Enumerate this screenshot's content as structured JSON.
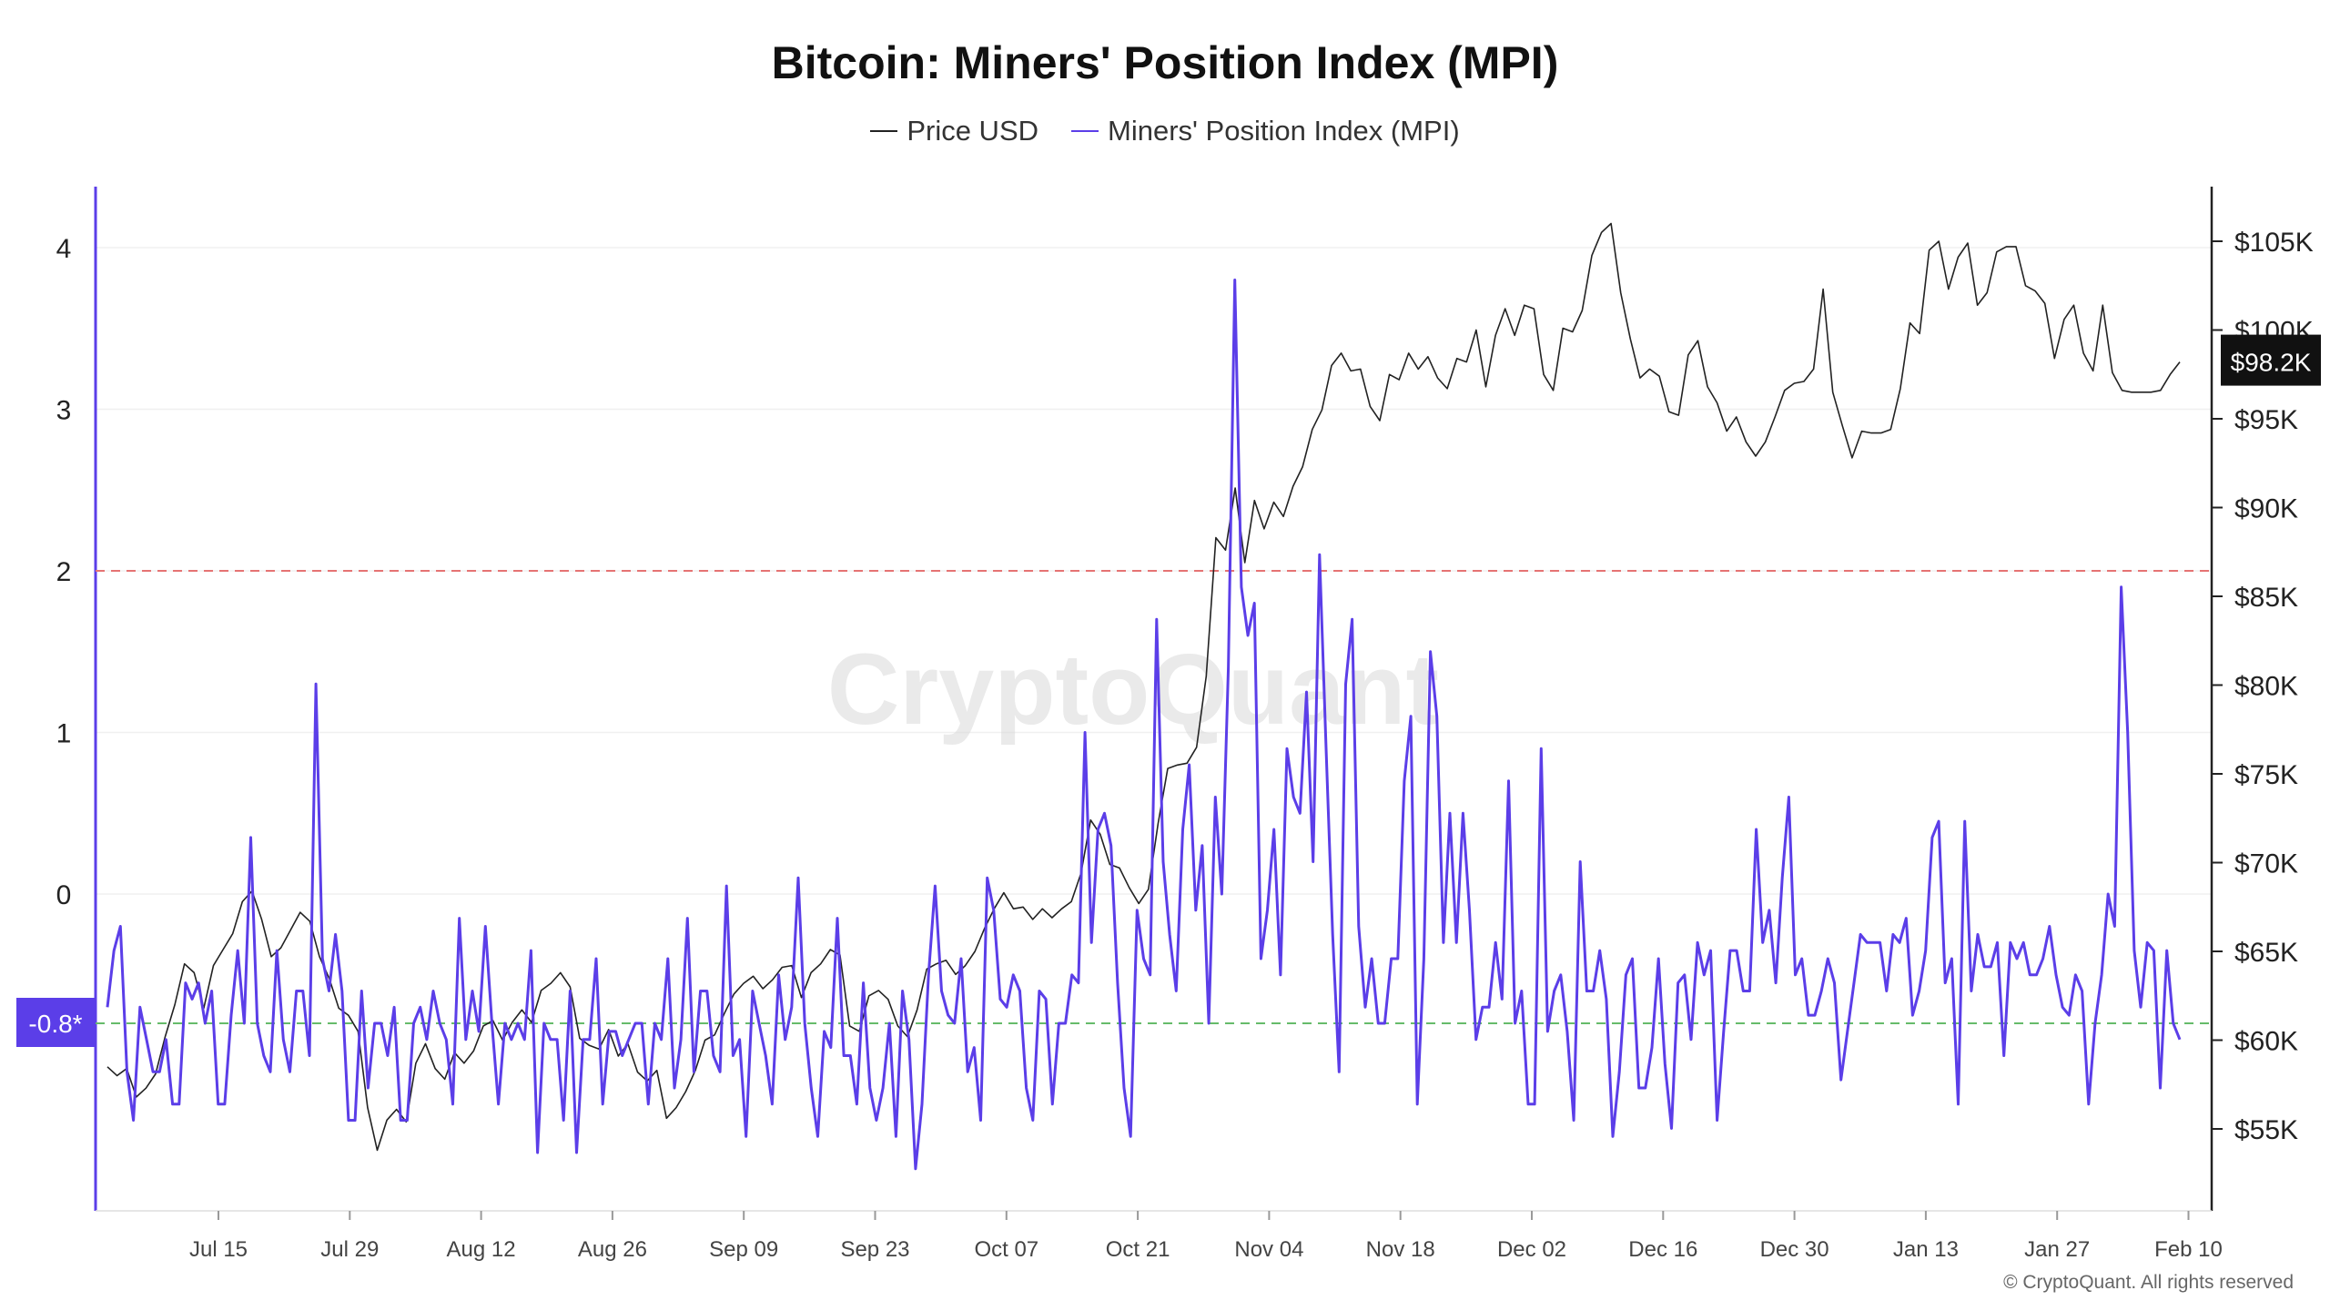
{
  "title": "Bitcoin: Miners' Position Index (MPI)",
  "legend": [
    {
      "label": "Price USD",
      "color": "#222222"
    },
    {
      "label": "Miners' Position Index (MPI)",
      "color": "#5b3ee8"
    }
  ],
  "watermark": "CryptoQuant",
  "copyright": "© CryptoQuant. All rights reserved",
  "colors": {
    "mpi": "#5b3ee8",
    "price": "#222222",
    "upper_ref": "#e57373",
    "lower_ref": "#66bb6a"
  },
  "chart_data": {
    "type": "line",
    "x_ticks": [
      "Jul 15",
      "Jul 29",
      "Aug 12",
      "Aug 26",
      "Sep 09",
      "Sep 23",
      "Oct 07",
      "Oct 21",
      "Nov 04",
      "Nov 18",
      "Dec 02",
      "Dec 16",
      "Dec 30",
      "Jan 13",
      "Jan 27",
      "Feb 10"
    ],
    "y_left_ticks": [
      "4",
      "3",
      "2",
      "1",
      "0"
    ],
    "y_right_ticks": [
      "$105K",
      "$100K",
      "$95K",
      "$90K",
      "$85K",
      "$80K",
      "$75K",
      "$70K",
      "$65K",
      "$60K",
      "$55K"
    ],
    "y_left_range": [
      -1.9,
      4.4
    ],
    "reference_lines": [
      {
        "value": 2,
        "color": "#e57373",
        "style": "dashed"
      },
      {
        "value": -0.8,
        "color": "#66bb6a",
        "style": "dashed",
        "label": "-0.8*"
      }
    ],
    "last_price_label": "$98.2K",
    "series": [
      {
        "name": "Price USD",
        "axis": "right",
        "x_range": [
          "Jul 03",
          "Feb 10"
        ],
        "values": [
          58500,
          58000,
          58400,
          56800,
          57300,
          58100,
          60200,
          62000,
          64300,
          63800,
          61800,
          64200,
          65100,
          66000,
          67800,
          68400,
          66800,
          64700,
          65200,
          66200,
          67200,
          66700,
          64700,
          63500,
          61800,
          61400,
          60500,
          56200,
          53800,
          55500,
          56100,
          55400,
          58700,
          59800,
          58400,
          57800,
          59300,
          58700,
          59400,
          60800,
          61100,
          60000,
          61000,
          61700,
          61000,
          62800,
          63200,
          63800,
          63000,
          60100,
          59700,
          59500,
          60600,
          59100,
          59800,
          58200,
          57700,
          58300,
          55600,
          56200,
          57100,
          58300,
          60000,
          60300,
          61500,
          62600,
          63200,
          63600,
          62900,
          63400,
          64100,
          64200,
          62400,
          63800,
          64300,
          65100,
          64800,
          60800,
          60500,
          62500,
          62800,
          62300,
          60800,
          60200,
          61700,
          64000,
          64300,
          64500,
          63700,
          64200,
          65000,
          66300,
          67400,
          68300,
          67400,
          67500,
          66800,
          67400,
          66900,
          67400,
          67800,
          69400,
          72400,
          71600,
          69900,
          69700,
          68600,
          67700,
          68500,
          72200,
          75300,
          75500,
          75600,
          76500,
          80500,
          88300,
          87600,
          91100,
          86900,
          90400,
          88800,
          90300,
          89500,
          91200,
          92300,
          94400,
          95500,
          98000,
          98700,
          97700,
          97800,
          95700,
          94900,
          97500,
          97200,
          98700,
          97800,
          98500,
          97300,
          96700,
          98400,
          98200,
          100000,
          96800,
          99700,
          101200,
          99700,
          101400,
          101200,
          97500,
          96600,
          100100,
          99900,
          101100,
          104200,
          105500,
          106000,
          102100,
          99500,
          97300,
          97800,
          97400,
          95400,
          95200,
          98600,
          99400,
          96800,
          95900,
          94300,
          95100,
          93700,
          92900,
          93700,
          95100,
          96600,
          97000,
          97100,
          97800,
          102300,
          96500,
          94600,
          92800,
          94300,
          94200,
          94200,
          94400,
          96700,
          100400,
          99800,
          104500,
          105000,
          102300,
          104100,
          104900,
          101400,
          102100,
          104400,
          104700,
          104700,
          102500,
          102200,
          101500,
          98400,
          100600,
          101400,
          98700,
          97700,
          101400,
          97600,
          96600,
          96500,
          96500,
          96500,
          96600,
          97500,
          98200
        ]
      },
      {
        "name": "Miners' Position Index (MPI)",
        "axis": "left",
        "x_range": [
          "Jul 03",
          "Feb 10"
        ],
        "values": [
          -0.7,
          -0.35,
          -0.2,
          -1.1,
          -1.4,
          -0.7,
          -0.9,
          -1.1,
          -1.1,
          -0.9,
          -1.3,
          -1.3,
          -0.55,
          -0.65,
          -0.55,
          -0.8,
          -0.6,
          -1.3,
          -1.3,
          -0.75,
          -0.35,
          -0.8,
          0.35,
          -0.8,
          -1.0,
          -1.1,
          -0.35,
          -0.9,
          -1.1,
          -0.6,
          -0.6,
          -1.0,
          1.3,
          -0.4,
          -0.6,
          -0.25,
          -0.6,
          -1.4,
          -1.4,
          -0.6,
          -1.2,
          -0.8,
          -0.8,
          -1.0,
          -0.7,
          -1.4,
          -1.4,
          -0.8,
          -0.7,
          -0.9,
          -0.6,
          -0.8,
          -0.9,
          -1.3,
          -0.15,
          -0.9,
          -0.6,
          -0.85,
          -0.2,
          -0.8,
          -1.3,
          -0.8,
          -0.9,
          -0.8,
          -0.9,
          -0.35,
          -1.6,
          -0.8,
          -0.9,
          -0.9,
          -1.4,
          -0.6,
          -1.6,
          -0.9,
          -0.9,
          -0.4,
          -1.3,
          -0.85,
          -0.85,
          -1.0,
          -0.9,
          -0.8,
          -0.8,
          -1.3,
          -0.8,
          -0.9,
          -0.4,
          -1.2,
          -0.9,
          -0.15,
          -1.1,
          -0.6,
          -0.6,
          -1.0,
          -1.1,
          0.05,
          -1.0,
          -0.9,
          -1.5,
          -0.6,
          -0.8,
          -1.0,
          -1.3,
          -0.5,
          -0.9,
          -0.7,
          0.1,
          -0.8,
          -1.2,
          -1.5,
          -0.85,
          -0.95,
          -0.15,
          -1.0,
          -1.0,
          -1.3,
          -0.55,
          -1.2,
          -1.4,
          -1.2,
          -0.8,
          -1.5,
          -0.6,
          -0.9,
          -1.7,
          -1.3,
          -0.5,
          0.05,
          -0.6,
          -0.75,
          -0.8,
          -0.4,
          -1.1,
          -0.95,
          -1.4,
          0.1,
          -0.1,
          -0.65,
          -0.7,
          -0.5,
          -0.6,
          -1.2,
          -1.4,
          -0.6,
          -0.65,
          -1.3,
          -0.8,
          -0.8,
          -0.5,
          -0.55,
          1.0,
          -0.3,
          0.4,
          0.5,
          0.3,
          -0.55,
          -1.2,
          -1.5,
          -0.1,
          -0.4,
          -0.5,
          1.7,
          0.2,
          -0.25,
          -0.6,
          0.4,
          0.8,
          -0.1,
          0.3,
          -0.8,
          0.6,
          0.0,
          1.4,
          3.8,
          1.9,
          1.6,
          1.8,
          -0.4,
          -0.1,
          0.4,
          -0.5,
          0.9,
          0.6,
          0.5,
          1.25,
          0.2,
          2.1,
          0.9,
          -0.25,
          -1.1,
          1.3,
          1.7,
          -0.2,
          -0.7,
          -0.4,
          -0.8,
          -0.8,
          -0.4,
          -0.4,
          0.7,
          1.1,
          -1.3,
          -0.4,
          1.5,
          1.1,
          -0.3,
          0.5,
          -0.3,
          0.5,
          -0.1,
          -0.9,
          -0.7,
          -0.7,
          -0.3,
          -0.65,
          0.7,
          -0.8,
          -0.6,
          -1.3,
          -1.3,
          0.9,
          -0.85,
          -0.6,
          -0.5,
          -0.85,
          -1.4,
          0.2,
          -0.6,
          -0.6,
          -0.35,
          -0.65,
          -1.5,
          -1.1,
          -0.5,
          -0.4,
          -1.2,
          -1.2,
          -0.95,
          -0.4,
          -1.05,
          -1.45,
          -0.55,
          -0.5,
          -0.9,
          -0.3,
          -0.5,
          -0.35,
          -1.4,
          -0.85,
          -0.35,
          -0.35,
          -0.6,
          -0.6,
          0.4,
          -0.3,
          -0.1,
          -0.55,
          0.1,
          0.6,
          -0.5,
          -0.4,
          -0.75,
          -0.75,
          -0.6,
          -0.4,
          -0.55,
          -1.15,
          -0.85,
          -0.55,
          -0.25,
          -0.3,
          -0.3,
          -0.3,
          -0.6,
          -0.25,
          -0.3,
          -0.15,
          -0.75,
          -0.6,
          -0.35,
          0.35,
          0.45,
          -0.55,
          -0.4,
          -1.3,
          0.45,
          -0.6,
          -0.25,
          -0.45,
          -0.45,
          -0.3,
          -1.0,
          -0.3,
          -0.4,
          -0.3,
          -0.5,
          -0.5,
          -0.4,
          -0.2,
          -0.5,
          -0.7,
          -0.75,
          -0.5,
          -0.6,
          -1.3,
          -0.8,
          -0.5,
          0.0,
          -0.2,
          1.9,
          1.0,
          -0.35,
          -0.7,
          -0.3,
          -0.35,
          -1.2,
          -0.35,
          -0.8,
          -0.9
        ]
      }
    ]
  }
}
